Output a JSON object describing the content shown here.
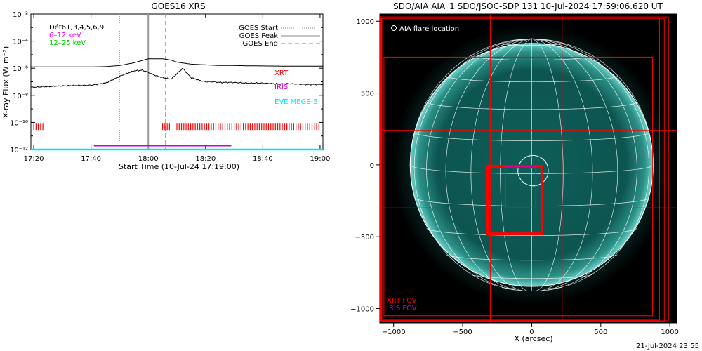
{
  "colors": {
    "xrt": "#ff0000",
    "iris": "#cc00cc",
    "eve": "#00e5ee",
    "low": "#ff00ff",
    "high": "#00cc00",
    "disk": "#0b4f4a",
    "grid": "#ffffff"
  },
  "footer": {
    "timestamp": "21-Jul-2024 23:55"
  },
  "chart_data": [
    {
      "type": "line",
      "title": "GOES16 XRS",
      "xlabel": "Start Time (10-Jul-24 17:19:00)",
      "ylabel": "X-ray Flux (W m⁻²)",
      "x_ticks": [
        "17:20",
        "17:40",
        "18:00",
        "18:20",
        "18:40",
        "19:00"
      ],
      "y_ticks": [
        "10⁻¹²",
        "10⁻¹⁰",
        "10⁻⁸",
        "10⁻⁶",
        "10⁻⁴",
        "10⁻²"
      ],
      "y_scale": "log",
      "ylim": [
        1e-12,
        0.01
      ],
      "xlim_minutes_after_1720": [
        -1,
        101
      ],
      "detectors_label": "Dét61,3,4,5,6,9",
      "series": [
        {
          "name": "6–12 keV",
          "color": "#ff00ff",
          "x_min": [
            0,
            10,
            20,
            25,
            30,
            35,
            40,
            45,
            48,
            50,
            55,
            60,
            65,
            70,
            75,
            80,
            85,
            90,
            95,
            100
          ],
          "log10_y": [
            -5.9,
            -5.9,
            -5.9,
            -5.88,
            -5.8,
            -5.6,
            -5.3,
            -5.3,
            -5.4,
            -5.55,
            -5.7,
            -5.75,
            -5.8,
            -5.8,
            -5.82,
            -5.83,
            -5.84,
            -5.85,
            -5.85,
            -5.85
          ]
        },
        {
          "name": "12–25 keV",
          "color": "#00cc00",
          "x_min": [
            0,
            10,
            20,
            25,
            28,
            31,
            35,
            38,
            40,
            42,
            45,
            48,
            50,
            52,
            55,
            58,
            60,
            63,
            65,
            70,
            75,
            80,
            85,
            90,
            95,
            100
          ],
          "log10_y": [
            -7.4,
            -7.3,
            -7.25,
            -7.1,
            -6.8,
            -6.5,
            -6.2,
            -6.15,
            -6.3,
            -6.5,
            -6.7,
            -6.8,
            -6.4,
            -6.0,
            -6.7,
            -6.9,
            -7.0,
            -7.0,
            -7.05,
            -7.05,
            -7.1,
            -7.1,
            -7.15,
            -7.15,
            -7.2,
            -7.2
          ]
        }
      ],
      "markers": [
        {
          "name": "GOES Start",
          "style": "dotted",
          "x_min": 30
        },
        {
          "name": "GOES Peak",
          "style": "solid",
          "x_min": 40
        },
        {
          "name": "GOES End",
          "style": "dashed",
          "x_min": 46
        }
      ],
      "coverage": [
        {
          "name": "XRT",
          "color": "#ff0000",
          "log10_y": -10.3,
          "intervals": [
            [
              0,
              3.5
            ],
            [
              45,
              48
            ],
            [
              50,
              100
            ]
          ]
        },
        {
          "name": "IRIS",
          "color": "#cc00cc",
          "log10_y": -11.7,
          "intervals": [
            [
              21,
              69
            ]
          ]
        },
        {
          "name": "EVE MEGS-B",
          "color": "#00e5ee",
          "log10_y": -12.0,
          "intervals": [
            [
              -1,
              101
            ]
          ]
        }
      ],
      "legend": [
        "GOES Start",
        "GOES Peak",
        "GOES End"
      ],
      "coverage_legend": [
        "XRT",
        "IRIS",
        "EVE MEGS-B"
      ]
    },
    {
      "type": "scatter",
      "title": "SDO/AIA AIA_1 SDO/JSOC-SDP 131 10-Jul-2024 17:59:06.620 UT",
      "xlabel": "X (arcsec)",
      "ylabel": "",
      "xlim": [
        -1100,
        1050
      ],
      "ylim": [
        -1100,
        1050
      ],
      "x_ticks": [
        -1000,
        -500,
        0,
        500,
        1000
      ],
      "y_ticks": [
        -1000,
        -500,
        0,
        500,
        1000
      ],
      "solar_radius_arcsec": 880,
      "flare_location_label": "AIA flare location",
      "flare_location": {
        "x": 10,
        "y": -40,
        "r": 110
      },
      "fov_boxes": [
        {
          "name": "XRT FOV",
          "color": "#ff0000",
          "x": [
            -110,
            30
          ],
          "y": [
            -400,
            1
          ],
          "thick": true
        },
        {
          "name": "IRIS FOV",
          "color": "#cc00cc",
          "x": [
            -200,
            -40
          ],
          "y": [
            -300,
            -120
          ]
        }
      ],
      "fov_legend": [
        "XRT FOV",
        "IRIS FOV"
      ]
    }
  ]
}
